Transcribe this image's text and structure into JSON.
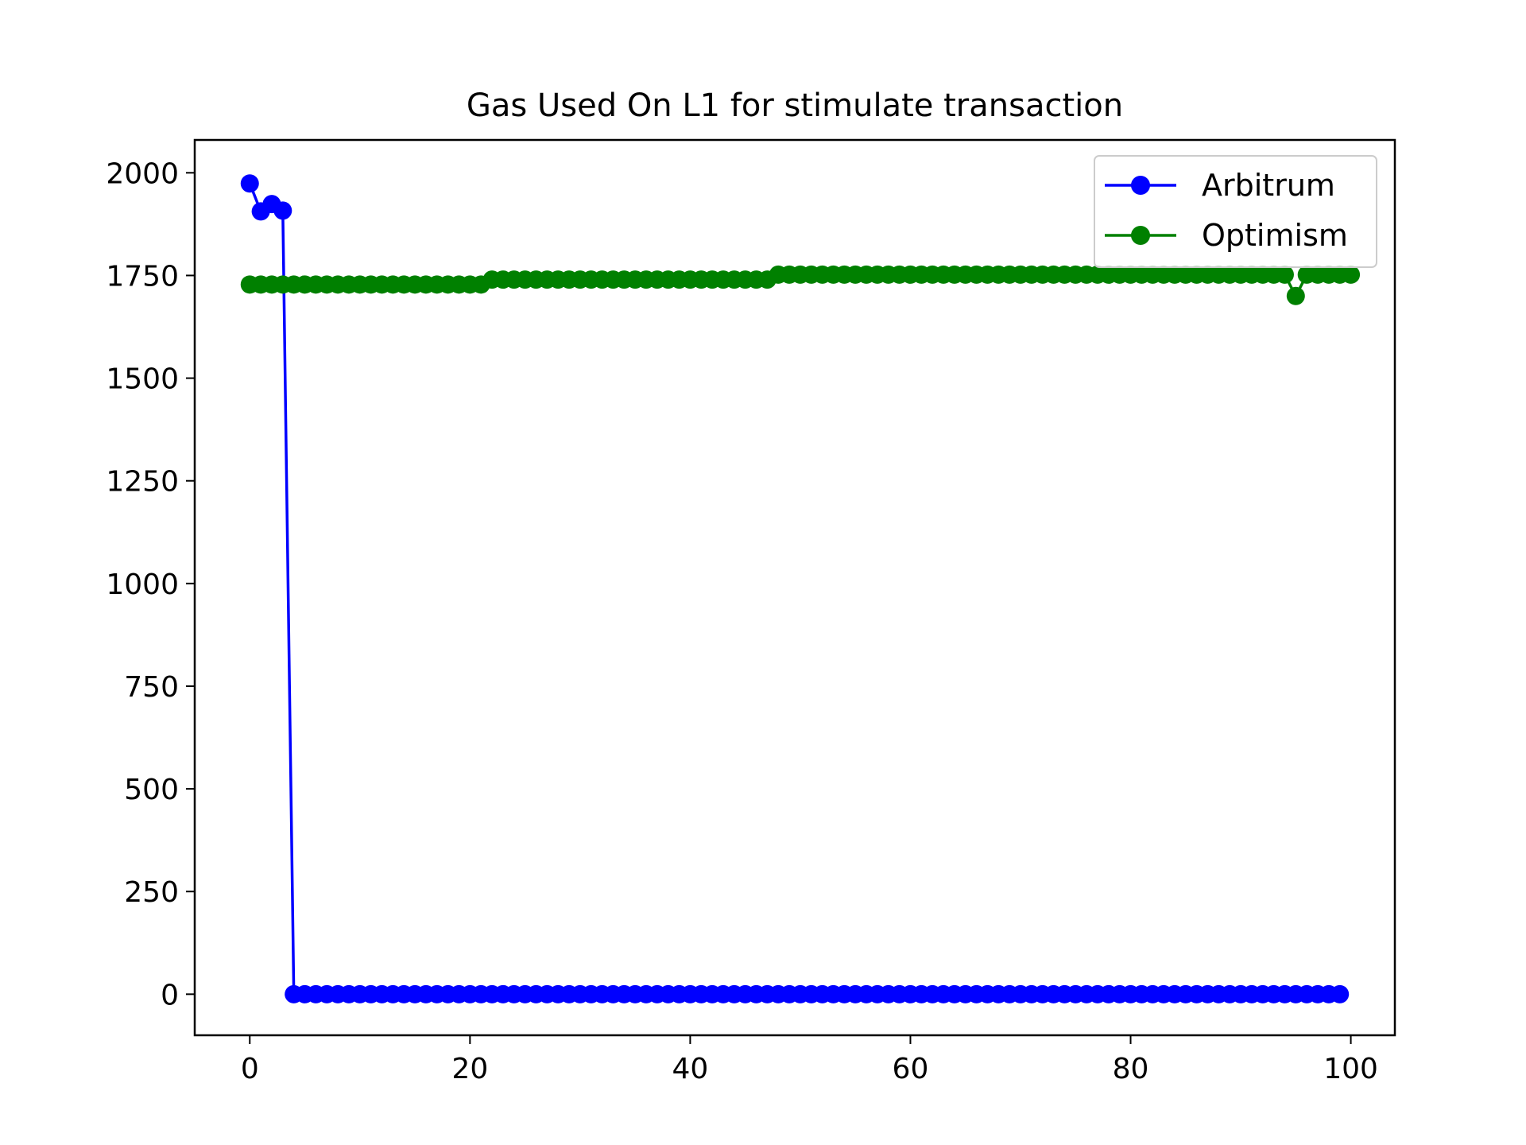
{
  "chart_data": {
    "type": "line",
    "title": "Gas Used On L1 for stimulate transaction",
    "xlabel": "",
    "ylabel": "",
    "xlim": [
      -5,
      104
    ],
    "ylim": [
      -100,
      2080
    ],
    "xticks": [
      0,
      20,
      40,
      60,
      80,
      100
    ],
    "yticks": [
      0,
      250,
      500,
      750,
      1000,
      1250,
      1500,
      1750,
      2000
    ],
    "grid": false,
    "legend": "top-right",
    "series": [
      {
        "name": "Arbitrum",
        "color": "#0000ff",
        "marker": "circle",
        "x_start": 0,
        "values": [
          1974,
          1906,
          1924,
          1908,
          0,
          0,
          0,
          0,
          0,
          0,
          0,
          0,
          0,
          0,
          0,
          0,
          0,
          0,
          0,
          0,
          0,
          0,
          0,
          0,
          0,
          0,
          0,
          0,
          0,
          0,
          0,
          0,
          0,
          0,
          0,
          0,
          0,
          0,
          0,
          0,
          0,
          0,
          0,
          0,
          0,
          0,
          0,
          0,
          0,
          0,
          0,
          0,
          0,
          0,
          0,
          0,
          0,
          0,
          0,
          0,
          0,
          0,
          0,
          0,
          0,
          0,
          0,
          0,
          0,
          0,
          0,
          0,
          0,
          0,
          0,
          0,
          0,
          0,
          0,
          0,
          0,
          0,
          0,
          0,
          0,
          0,
          0,
          0,
          0,
          0,
          0,
          0,
          0,
          0,
          0,
          0,
          0,
          0,
          0,
          0
        ]
      },
      {
        "name": "Optimism",
        "color": "#008000",
        "marker": "circle",
        "x_start": 0,
        "values": [
          1728,
          1728,
          1728,
          1728,
          1728,
          1728,
          1728,
          1728,
          1728,
          1728,
          1728,
          1728,
          1728,
          1728,
          1728,
          1728,
          1728,
          1728,
          1728,
          1728,
          1728,
          1728,
          1740,
          1740,
          1740,
          1740,
          1740,
          1740,
          1740,
          1740,
          1740,
          1740,
          1740,
          1740,
          1740,
          1740,
          1740,
          1740,
          1740,
          1740,
          1740,
          1740,
          1740,
          1740,
          1740,
          1740,
          1740,
          1740,
          1752,
          1752,
          1752,
          1752,
          1752,
          1752,
          1752,
          1752,
          1752,
          1752,
          1752,
          1752,
          1752,
          1752,
          1752,
          1752,
          1752,
          1752,
          1752,
          1752,
          1752,
          1752,
          1752,
          1752,
          1752,
          1752,
          1752,
          1752,
          1752,
          1752,
          1752,
          1752,
          1752,
          1752,
          1752,
          1752,
          1752,
          1752,
          1752,
          1752,
          1752,
          1752,
          1752,
          1752,
          1752,
          1752,
          1752,
          1700,
          1752,
          1752,
          1752,
          1752,
          1752
        ]
      }
    ]
  }
}
